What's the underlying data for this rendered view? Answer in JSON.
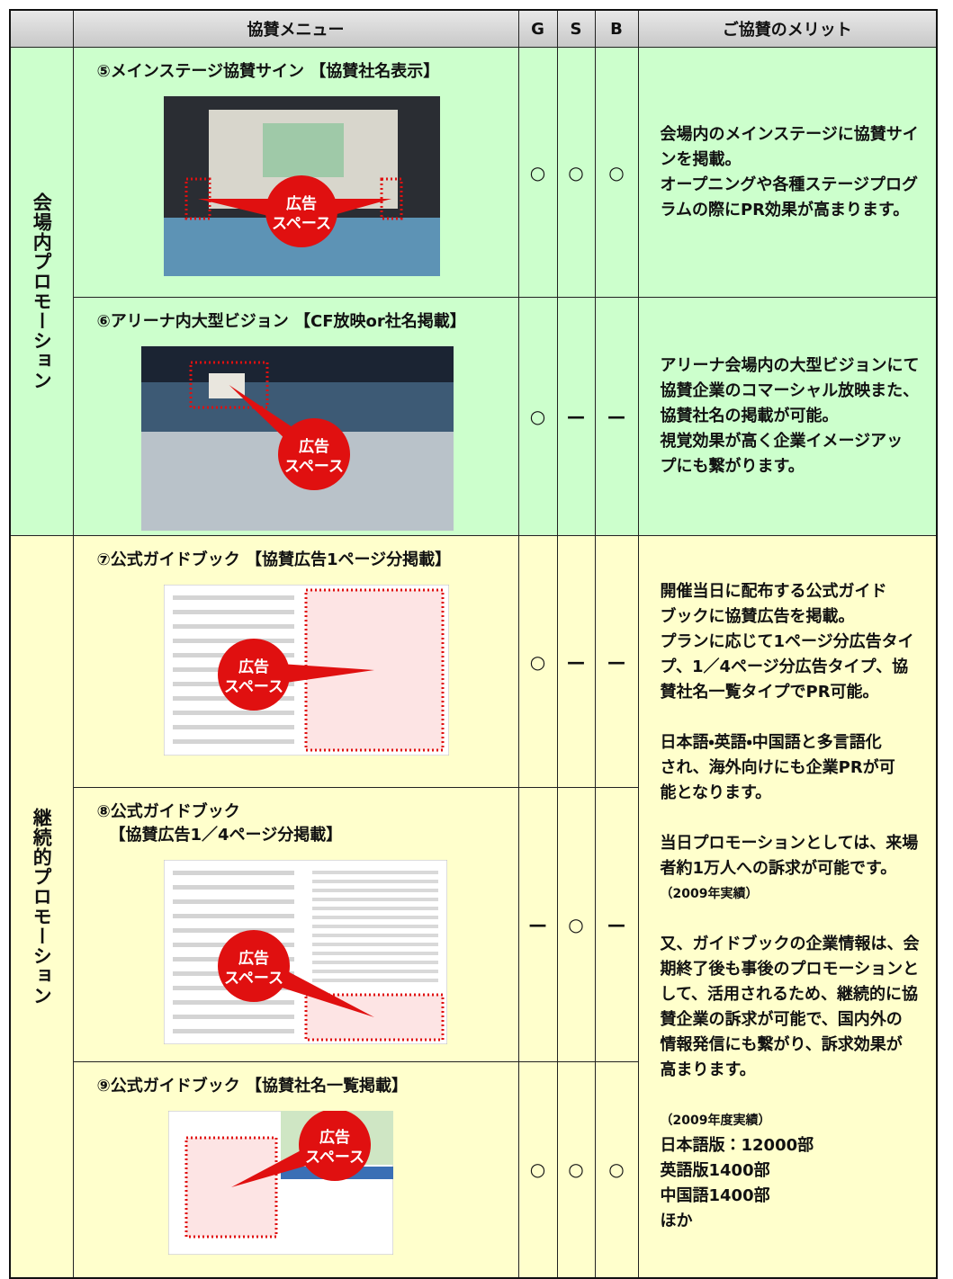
{
  "table": {
    "header": {
      "menu": "協賛メニュー",
      "g": "G",
      "s": "S",
      "b": "B",
      "merit": "ご協賛のメリット"
    },
    "sections": [
      {
        "label": "会場内プロモーション",
        "rows": [
          {
            "title": [
              "⑤メインステージ協賛サイン 【協賛社名表示】"
            ],
            "ad": [
              "広告",
              "スペース"
            ],
            "marks": [
              "○",
              "○",
              "○"
            ],
            "merit": [
              {
                "lines": [
                  "会場内のメインステージに協賛サイ",
                  "ンを掲載。",
                  "オープニングや各種ステージプログ",
                  "ラムの際にPR効果が高まります。"
                ]
              }
            ]
          },
          {
            "title": [
              "⑥アリーナ内大型ビジョン 【CF放映or社名掲載】"
            ],
            "ad": [
              "広告",
              "スペース"
            ],
            "marks": [
              "○",
              "—",
              "—"
            ],
            "merit": [
              {
                "lines": [
                  "アリーナ会場内の大型ビジョンにて",
                  "協賛企業のコマーシャル放映また、",
                  "協賛社名の掲載が可能。",
                  "視覚効果が高く企業イメージアッ",
                  "プにも繋がります。"
                ]
              }
            ]
          }
        ]
      },
      {
        "label": "継続的プロモーション",
        "rows": [
          {
            "title": [
              "⑦公式ガイドブック 【協賛広告1ページ分掲載】"
            ],
            "ad": [
              "広告",
              "スペース"
            ],
            "marks": [
              "○",
              "—",
              "—"
            ]
          },
          {
            "title": [
              "⑧公式ガイドブック",
              "【協賛広告1／4ページ分掲載】"
            ],
            "ad": [
              "広告",
              "スペース"
            ],
            "marks": [
              "—",
              "○",
              "—"
            ]
          },
          {
            "title": [
              "⑨公式ガイドブック 【協賛社名一覧掲載】"
            ],
            "ad": [
              "広告",
              "スペース"
            ],
            "marks": [
              "○",
              "○",
              "○"
            ]
          }
        ],
        "merit": [
          {
            "lines": [
              "開催当日に配布する公式ガイド",
              "ブックに協賛広告を掲載。",
              "プランに応じて1ページ分広告タイ",
              "プ、1／4ページ分広告タイプ、協",
              "賛社名一覧タイプでPR可能。"
            ]
          },
          {
            "lines": [
              "日本語・英語・中国語と多言語化",
              "され、海外向けにも企業PRが可",
              "能となります。"
            ]
          },
          {
            "lines": [
              "当日プロモーションとしては、来場",
              "者約1万人への訴求が可能です。",
              {
                "text": "（2009年実績）",
                "small": true
              }
            ]
          },
          {
            "lines": [
              "又、ガイドブックの企業情報は、会",
              "期終了後も事後のプロモーションと",
              "して、活用されるため、継続的に協",
              "賛企業の訴求が可能で、国内外の",
              "情報発信にも繋がり、訴求効果が",
              "高まります。"
            ]
          },
          {
            "lines": [
              {
                "text": "（2009年度実績）",
                "small": true
              },
              "日本語版：12000部",
              "英語版1400部",
              "中国語1400部",
              "ほか"
            ]
          }
        ]
      }
    ]
  }
}
